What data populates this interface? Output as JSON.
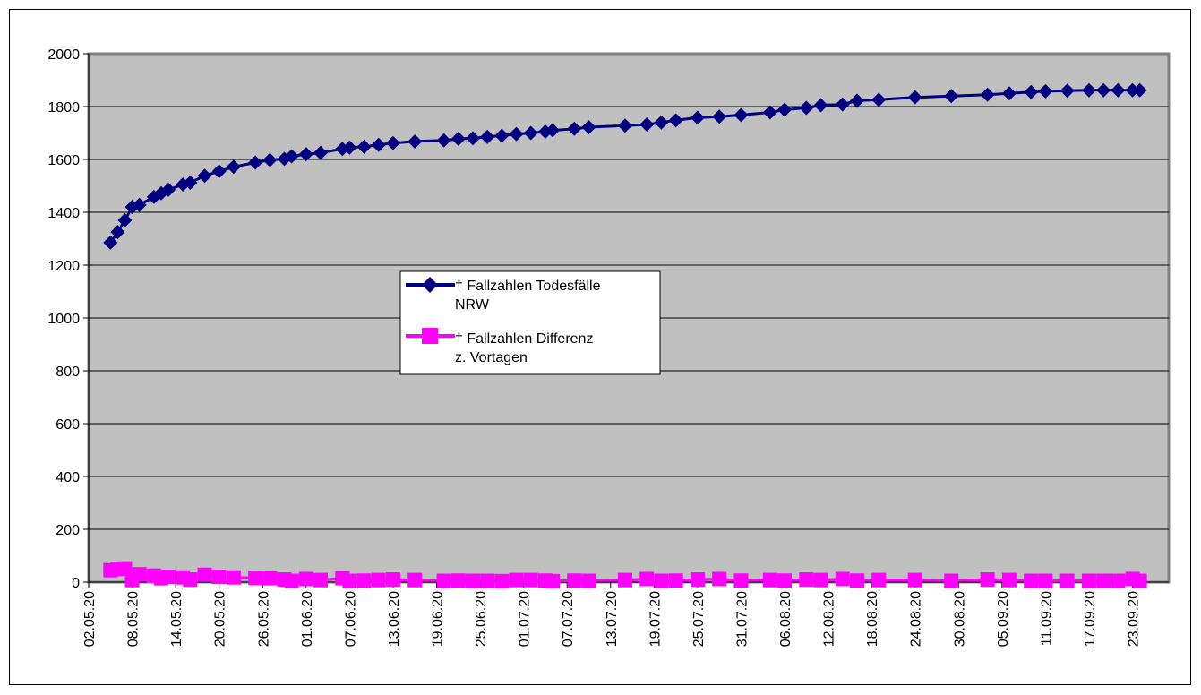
{
  "colors": {
    "plot_background": "#c0c0c0",
    "gridline": "#000000",
    "series_deaths": "#000080",
    "series_diff": "#ff00ff"
  },
  "chart_data": {
    "type": "line",
    "title": "",
    "xlabel": "",
    "ylabel": "",
    "ylim": [
      0,
      2000
    ],
    "y_ticks": [
      "0",
      "200",
      "400",
      "600",
      "800",
      "1000",
      "1200",
      "1400",
      "1600",
      "1800",
      "2000"
    ],
    "x_tick_labels": [
      "02.05.20",
      "08.05.20",
      "14.05.20",
      "20.05.20",
      "26.05.20",
      "01.06.20",
      "07.06.20",
      "13.06.20",
      "19.06.20",
      "25.06.20",
      "01.07.20",
      "07.07.20",
      "13.07.20",
      "19.07.20",
      "25.07.20",
      "31.07.20",
      "06.08.20",
      "12.08.20",
      "18.08.20",
      "24.08.20",
      "30.08.20",
      "05.09.20",
      "11.09.20",
      "17.09.20",
      "23.09.20"
    ],
    "x_range": [
      "02.05.20",
      "28.09.20"
    ],
    "grid": true,
    "legend_position": "center",
    "series": [
      {
        "name": "† Fallzahlen Todesfälle NRW",
        "marker": "diamond",
        "x": [
          "05.05.20",
          "06.05.20",
          "07.05.20",
          "08.05.20",
          "09.05.20",
          "11.05.20",
          "12.05.20",
          "13.05.20",
          "15.05.20",
          "16.05.20",
          "18.05.20",
          "20.05.20",
          "22.05.20",
          "25.05.20",
          "27.05.20",
          "29.05.20",
          "30.05.20",
          "01.06.20",
          "03.06.20",
          "06.06.20",
          "07.06.20",
          "09.06.20",
          "11.06.20",
          "13.06.20",
          "16.06.20",
          "20.06.20",
          "22.06.20",
          "24.06.20",
          "26.06.20",
          "28.06.20",
          "30.06.20",
          "02.07.20",
          "04.07.20",
          "05.07.20",
          "08.07.20",
          "10.07.20",
          "15.07.20",
          "18.07.20",
          "20.07.20",
          "22.07.20",
          "25.07.20",
          "28.07.20",
          "31.07.20",
          "04.08.20",
          "06.08.20",
          "09.08.20",
          "11.08.20",
          "14.08.20",
          "16.08.20",
          "19.08.20",
          "24.08.20",
          "29.08.20",
          "03.09.20",
          "06.09.20",
          "09.09.20",
          "11.09.20",
          "14.09.20",
          "17.09.20",
          "19.09.20",
          "21.09.20",
          "23.09.20",
          "24.09.20"
        ],
        "values": [
          1285,
          1325,
          1370,
          1420,
          1428,
          1458,
          1472,
          1485,
          1505,
          1512,
          1538,
          1555,
          1572,
          1588,
          1598,
          1602,
          1612,
          1620,
          1625,
          1640,
          1645,
          1648,
          1655,
          1662,
          1668,
          1672,
          1678,
          1680,
          1685,
          1690,
          1696,
          1700,
          1705,
          1710,
          1716,
          1722,
          1728,
          1732,
          1740,
          1748,
          1758,
          1762,
          1768,
          1778,
          1788,
          1795,
          1805,
          1808,
          1822,
          1826,
          1835,
          1840,
          1845,
          1850,
          1855,
          1858,
          1860,
          1862,
          1862,
          1862,
          1862,
          1862
        ]
      },
      {
        "name": "† Fallzahlen Differenz z. Vortagen",
        "marker": "square",
        "x": [
          "05.05.20",
          "06.05.20",
          "07.05.20",
          "08.05.20",
          "09.05.20",
          "11.05.20",
          "12.05.20",
          "13.05.20",
          "15.05.20",
          "16.05.20",
          "18.05.20",
          "20.05.20",
          "22.05.20",
          "25.05.20",
          "27.05.20",
          "29.05.20",
          "30.05.20",
          "01.06.20",
          "03.06.20",
          "06.06.20",
          "07.06.20",
          "09.06.20",
          "11.06.20",
          "13.06.20",
          "16.06.20",
          "20.06.20",
          "22.06.20",
          "24.06.20",
          "26.06.20",
          "28.06.20",
          "30.06.20",
          "02.07.20",
          "04.07.20",
          "05.07.20",
          "08.07.20",
          "10.07.20",
          "15.07.20",
          "18.07.20",
          "20.07.20",
          "22.07.20",
          "25.07.20",
          "28.07.20",
          "31.07.20",
          "04.08.20",
          "06.08.20",
          "09.08.20",
          "11.08.20",
          "14.08.20",
          "16.08.20",
          "19.08.20",
          "24.08.20",
          "29.08.20",
          "03.09.20",
          "06.09.20",
          "09.09.20",
          "11.09.20",
          "14.09.20",
          "17.09.20",
          "19.09.20",
          "21.09.20",
          "23.09.20",
          "24.09.20"
        ],
        "values": [
          45,
          50,
          52,
          8,
          30,
          25,
          15,
          20,
          18,
          10,
          28,
          20,
          18,
          16,
          15,
          10,
          5,
          12,
          8,
          15,
          5,
          6,
          8,
          10,
          8,
          5,
          6,
          5,
          5,
          4,
          8,
          8,
          6,
          4,
          6,
          5,
          8,
          12,
          5,
          6,
          10,
          12,
          6,
          8,
          6,
          10,
          8,
          12,
          6,
          8,
          8,
          5,
          10,
          8,
          5,
          5,
          5,
          5,
          5,
          5,
          12,
          5
        ]
      }
    ]
  }
}
